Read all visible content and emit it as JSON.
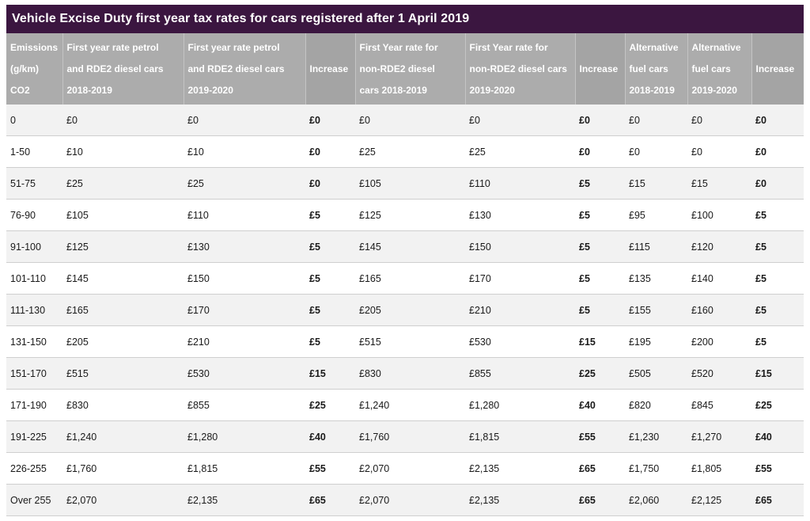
{
  "title": "Vehicle Excise Duty first year tax  rates for cars registered after 1 April 2019",
  "headers": [
    [
      "Emissions",
      "(g/km)",
      "CO2"
    ],
    [
      "First year rate petrol",
      "and RDE2 diesel cars",
      "2018-2019"
    ],
    [
      "First year rate petrol",
      "and RDE2 diesel cars",
      "2019-2020"
    ],
    [
      "Increase"
    ],
    [
      "First Year rate for",
      "non-RDE2  diesel",
      "cars 2018-2019"
    ],
    [
      "First Year rate for",
      "non-RDE2 diesel cars",
      "2019-2020"
    ],
    [
      "Increase"
    ],
    [
      "Alternative",
      "fuel cars",
      "2018-2019"
    ],
    [
      "Alternative",
      "fuel cars",
      "2019-2020"
    ],
    [
      "Increase"
    ]
  ],
  "rows": [
    [
      "0",
      "£0",
      "£0",
      "£0",
      "£0",
      "£0",
      "£0",
      "£0",
      "£0",
      "£0"
    ],
    [
      "1-50",
      "£10",
      "£10",
      "£0",
      "£25",
      "£25",
      "£0",
      "£0",
      "£0",
      "£0"
    ],
    [
      "51-75",
      "£25",
      "£25",
      "£0",
      "£105",
      "£110",
      "£5",
      "£15",
      "£15",
      "£0"
    ],
    [
      "76-90",
      "£105",
      "£110",
      "£5",
      "£125",
      "£130",
      "£5",
      "£95",
      "£100",
      "£5"
    ],
    [
      "91-100",
      "£125",
      "£130",
      "£5",
      "£145",
      "£150",
      "£5",
      "£115",
      "£120",
      "£5"
    ],
    [
      "101-110",
      "£145",
      "£150",
      "£5",
      "£165",
      "£170",
      "£5",
      "£135",
      "£140",
      "£5"
    ],
    [
      "111-130",
      "£165",
      "£170",
      "£5",
      "£205",
      "£210",
      "£5",
      "£155",
      "£160",
      "£5"
    ],
    [
      "131-150",
      "£205",
      "£210",
      "£5",
      "£515",
      "£530",
      "£15",
      "£195",
      "£200",
      "£5"
    ],
    [
      "151-170",
      "£515",
      "£530",
      "£15",
      "£830",
      "£855",
      "£25",
      "£505",
      "£520",
      "£15"
    ],
    [
      "171-190",
      "£830",
      "£855",
      "£25",
      "£1,240",
      "£1,280",
      "£40",
      "£820",
      "£845",
      "£25"
    ],
    [
      "191-225",
      "£1,240",
      "£1,280",
      "£40",
      "£1,760",
      "£1,815",
      "£55",
      "£1,230",
      "£1,270",
      "£40"
    ],
    [
      "226-255",
      "£1,760",
      "£1,815",
      "£55",
      "£2,070",
      "£2,135",
      "£65",
      "£1,750",
      "£1,805",
      "£55"
    ],
    [
      "Over 255",
      "£2,070",
      "£2,135",
      "£65",
      "£2,070",
      "£2,135",
      "£65",
      "£2,060",
      "£2,125",
      "£65"
    ]
  ],
  "colors": {
    "title_background": "#3b1640",
    "header_background": "#acacac",
    "row_stripe": "#f2f2f2"
  }
}
